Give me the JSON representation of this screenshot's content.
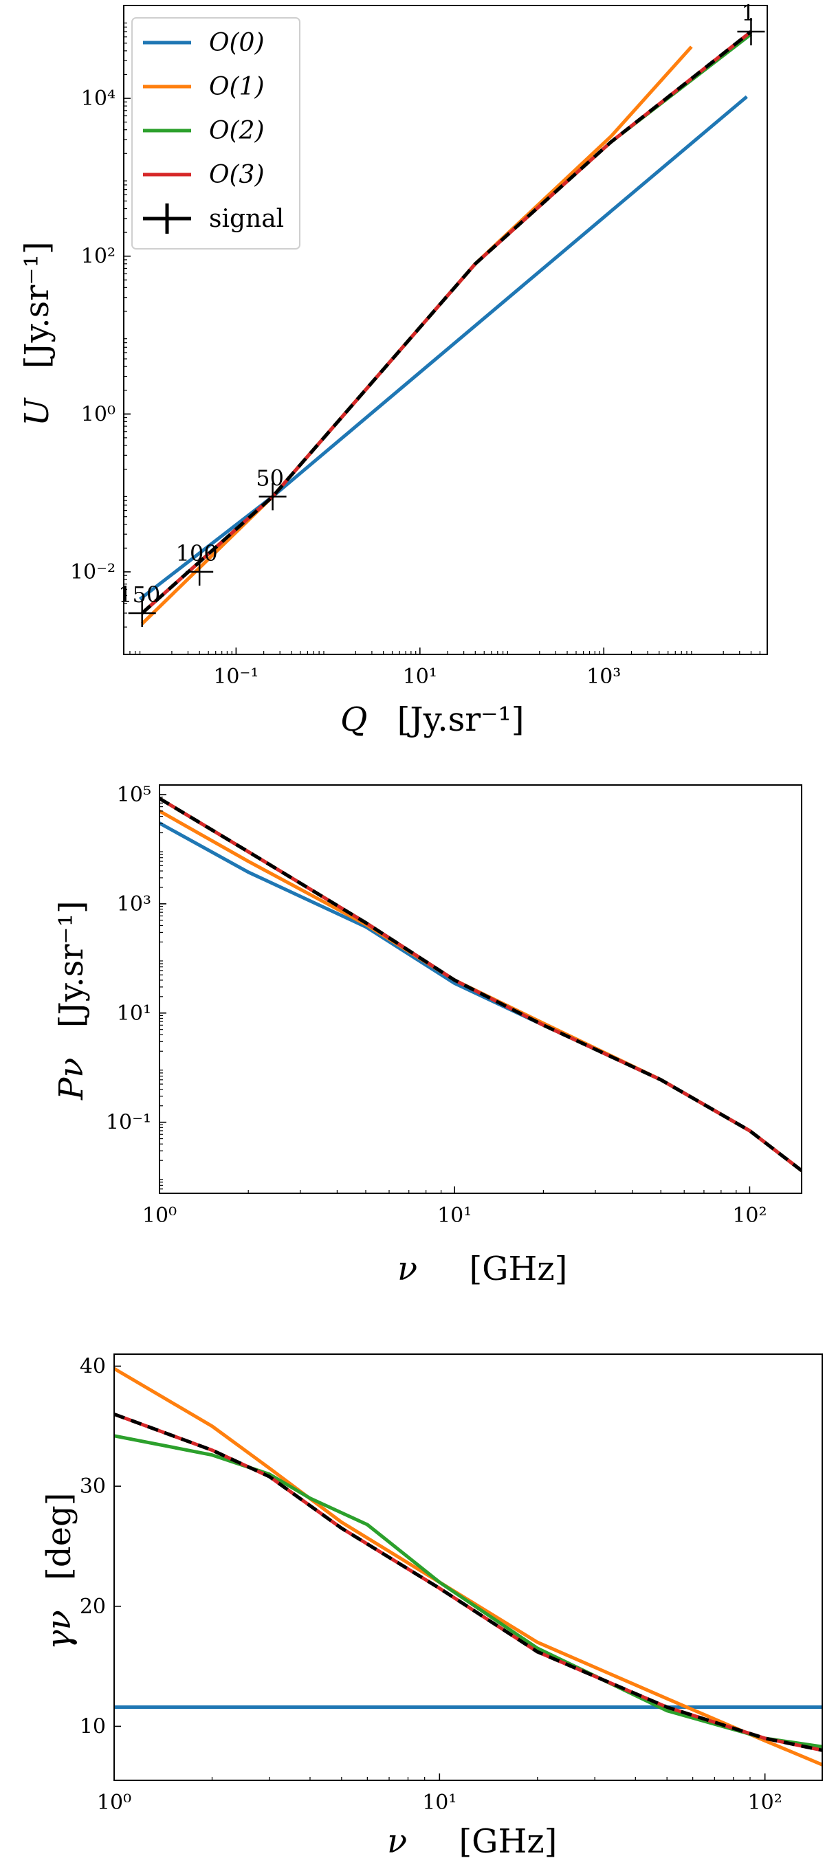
{
  "colors": {
    "O0": "#1f77b4",
    "O1": "#ff7f0e",
    "O2": "#2ca02c",
    "O3": "#d62728",
    "signal": "#000000"
  },
  "chart_data": [
    {
      "type": "line",
      "title": "",
      "xlabel": "Q",
      "xunit": "[Jy.sr⁻¹]",
      "ylabel": "U",
      "yunit": "[Jy.sr⁻¹]",
      "xscale": "log",
      "yscale": "log",
      "xlim": [
        0.006,
        60000
      ],
      "ylim": [
        0.0009,
        150000
      ],
      "xticks": [
        {
          "v": 0.1,
          "label": "10⁻¹"
        },
        {
          "v": 10,
          "label": "10¹"
        },
        {
          "v": 1000,
          "label": "10³"
        }
      ],
      "yticks": [
        {
          "v": 0.01,
          "label": "10⁻²"
        },
        {
          "v": 1,
          "label": "10⁰"
        },
        {
          "v": 100,
          "label": "10²"
        },
        {
          "v": 10000,
          "label": "10⁴"
        }
      ],
      "legend": {
        "placement": "top-left",
        "entries": [
          {
            "key": "O0",
            "label": "O(0)",
            "italic": true
          },
          {
            "key": "O1",
            "label": "O(1)",
            "italic": true
          },
          {
            "key": "O2",
            "label": "O(2)",
            "italic": true
          },
          {
            "key": "O3",
            "label": "O(3)",
            "italic": true
          },
          {
            "key": "signal",
            "label": "signal",
            "italic": false,
            "marker": "plus"
          }
        ]
      },
      "series": [
        {
          "name": "O(0)",
          "key": "O0",
          "dash": false,
          "x": [
            0.009,
            0.25,
            36000
          ],
          "y": [
            0.0045,
            0.09,
            10500
          ]
        },
        {
          "name": "O(1)",
          "key": "O1",
          "dash": false,
          "x": [
            0.0095,
            0.25,
            40,
            1200,
            9000
          ],
          "y": [
            0.0022,
            0.09,
            80,
            3300,
            45000
          ]
        },
        {
          "name": "O(2)",
          "key": "O2",
          "dash": false,
          "x": [
            0.0095,
            0.25,
            40,
            1200,
            40000
          ],
          "y": [
            0.003,
            0.09,
            80,
            2800,
            65000
          ]
        },
        {
          "name": "O(3)",
          "key": "O3",
          "dash": false,
          "x": [
            0.0095,
            0.25,
            40,
            1200,
            40000
          ],
          "y": [
            0.003,
            0.09,
            80,
            2800,
            70000
          ]
        },
        {
          "name": "signal",
          "key": "signal",
          "dash": true,
          "x": [
            0.0095,
            0.25,
            40,
            1200,
            40000
          ],
          "y": [
            0.003,
            0.09,
            80,
            2800,
            70000
          ]
        }
      ],
      "annotations": [
        {
          "text": "1",
          "x": 40000,
          "y": 70000
        },
        {
          "text": "50",
          "x": 0.25,
          "y": 0.09
        },
        {
          "text": "100",
          "x": 0.04,
          "y": 0.01
        },
        {
          "text": "150",
          "x": 0.0095,
          "y": 0.003
        }
      ]
    },
    {
      "type": "line",
      "title": "",
      "xlabel": "ν",
      "xunit": "[GHz]",
      "ylabel": "Pν",
      "yunit": "[Jy.sr⁻¹]",
      "xscale": "log",
      "yscale": "log",
      "xlim": [
        1,
        150
      ],
      "ylim": [
        0.005,
        150000
      ],
      "xticks": [
        {
          "v": 1,
          "label": "10⁰"
        },
        {
          "v": 10,
          "label": "10¹"
        },
        {
          "v": 100,
          "label": "10²"
        }
      ],
      "yticks": [
        {
          "v": 0.1,
          "label": "10⁻¹"
        },
        {
          "v": 10,
          "label": "10¹"
        },
        {
          "v": 1000,
          "label": "10³"
        },
        {
          "v": 100000,
          "label": "10⁵"
        }
      ],
      "series": [
        {
          "name": "O(0)",
          "key": "O0",
          "dash": false,
          "x": [
            1,
            2,
            5,
            10,
            20,
            50,
            100,
            150
          ],
          "y": [
            30000,
            3800,
            380,
            35,
            6,
            0.6,
            0.07,
            0.013
          ]
        },
        {
          "name": "O(1)",
          "key": "O1",
          "dash": false,
          "x": [
            1,
            2,
            5,
            10,
            20,
            50,
            100,
            150
          ],
          "y": [
            50000,
            6000,
            420,
            40,
            6.5,
            0.6,
            0.07,
            0.013
          ]
        },
        {
          "name": "O(2)",
          "key": "O2",
          "dash": false,
          "x": [
            1,
            2,
            5,
            10,
            20,
            50,
            100,
            150
          ],
          "y": [
            85000,
            9000,
            450,
            40,
            6,
            0.6,
            0.07,
            0.013
          ]
        },
        {
          "name": "O(3)",
          "key": "O3",
          "dash": false,
          "x": [
            1,
            2,
            5,
            10,
            20,
            50,
            100,
            150
          ],
          "y": [
            85000,
            9000,
            450,
            40,
            6,
            0.6,
            0.07,
            0.013
          ]
        },
        {
          "name": "signal",
          "key": "signal",
          "dash": true,
          "x": [
            1,
            2,
            5,
            10,
            20,
            50,
            100,
            150
          ],
          "y": [
            85000,
            9000,
            450,
            40,
            6,
            0.6,
            0.07,
            0.013
          ]
        }
      ]
    },
    {
      "type": "line",
      "title": "",
      "xlabel": "ν",
      "xunit": "[GHz]",
      "ylabel": "γν",
      "yunit": "[deg]",
      "xscale": "log",
      "yscale": "linear",
      "xlim": [
        1,
        150
      ],
      "ylim": [
        5.5,
        41
      ],
      "xticks": [
        {
          "v": 1,
          "label": "10⁰"
        },
        {
          "v": 10,
          "label": "10¹"
        },
        {
          "v": 100,
          "label": "10²"
        }
      ],
      "yticks": [
        {
          "v": 10,
          "label": "10"
        },
        {
          "v": 20,
          "label": "20"
        },
        {
          "v": 30,
          "label": "30"
        },
        {
          "v": 40,
          "label": "40"
        }
      ],
      "series": [
        {
          "name": "O(0)",
          "key": "O0",
          "dash": false,
          "x": [
            1,
            150
          ],
          "y": [
            11.6,
            11.6
          ]
        },
        {
          "name": "O(1)",
          "key": "O1",
          "dash": false,
          "x": [
            1,
            2,
            3,
            5,
            10,
            20,
            50,
            100,
            150
          ],
          "y": [
            39.8,
            35,
            31.5,
            27,
            22,
            17,
            12.3,
            8.8,
            6.8
          ]
        },
        {
          "name": "O(2)",
          "key": "O2",
          "dash": false,
          "x": [
            1,
            2,
            3,
            4,
            6,
            10,
            20,
            50,
            100,
            150
          ],
          "y": [
            34.2,
            32.6,
            31,
            29,
            26.8,
            22,
            16.5,
            11.3,
            9,
            8.3
          ]
        },
        {
          "name": "O(3)",
          "key": "O3",
          "dash": false,
          "x": [
            1,
            2,
            3,
            5,
            10,
            20,
            50,
            100,
            150
          ],
          "y": [
            36,
            33,
            30.8,
            26.5,
            21.5,
            16.2,
            11.6,
            9,
            8
          ]
        },
        {
          "name": "signal",
          "key": "signal",
          "dash": true,
          "x": [
            1,
            2,
            3,
            5,
            10,
            20,
            50,
            100,
            150
          ],
          "y": [
            36,
            33,
            30.8,
            26.5,
            21.5,
            16.2,
            11.6,
            9,
            8
          ]
        }
      ]
    }
  ]
}
